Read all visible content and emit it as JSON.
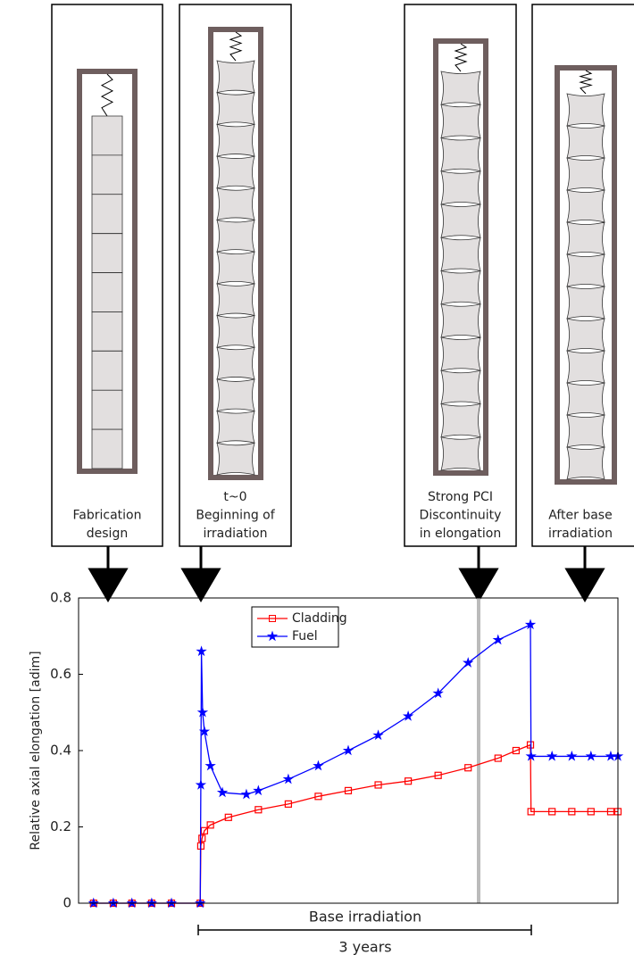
{
  "panels": [
    {
      "caption": [
        "Fabrication",
        "design"
      ]
    },
    {
      "caption": [
        "t~0",
        "Beginning of",
        "irradiation"
      ]
    },
    {
      "caption": [
        "Strong PCI",
        "Discontinuity",
        "in elongation"
      ]
    },
    {
      "caption": [
        "After base",
        "irradiation"
      ]
    }
  ],
  "chart_data": {
    "type": "line",
    "y_label": "Relative axial elongation [adim]",
    "annotation": "Base irradiation",
    "span_label": "3 years",
    "ylim": [
      0,
      0.8
    ],
    "yticks": [
      0,
      0.2,
      0.4,
      0.6,
      0.8
    ],
    "xlim": [
      0,
      9
    ],
    "legend": "upper center",
    "series": [
      {
        "name": "Cladding",
        "color": "#ff0000",
        "marker": "square",
        "x": [
          0.25,
          0.58,
          0.89,
          1.22,
          1.55,
          2.03,
          2.04,
          2.06,
          2.1,
          2.2,
          2.5,
          3.0,
          3.5,
          4.0,
          4.5,
          5.0,
          5.5,
          6.0,
          6.5,
          7.0,
          7.3,
          7.54,
          7.55,
          7.9,
          8.23,
          8.55,
          8.88,
          9.0
        ],
        "values": [
          0,
          0,
          0,
          0,
          0,
          0,
          0.15,
          0.17,
          0.19,
          0.205,
          0.225,
          0.245,
          0.26,
          0.28,
          0.295,
          0.31,
          0.32,
          0.335,
          0.355,
          0.38,
          0.4,
          0.415,
          0.24,
          0.24,
          0.24,
          0.24,
          0.24,
          0.24
        ]
      },
      {
        "name": "Fuel",
        "color": "#0000ff",
        "marker": "star",
        "x": [
          0.25,
          0.58,
          0.89,
          1.22,
          1.55,
          2.03,
          2.04,
          2.05,
          2.07,
          2.1,
          2.2,
          2.4,
          2.8,
          3.0,
          3.5,
          4.0,
          4.5,
          5.0,
          5.5,
          6.0,
          6.5,
          7.0,
          7.54,
          7.55,
          7.9,
          8.23,
          8.55,
          8.88,
          9.0
        ],
        "values": [
          0,
          0,
          0,
          0,
          0,
          0,
          0.31,
          0.66,
          0.5,
          0.45,
          0.36,
          0.29,
          0.285,
          0.295,
          0.325,
          0.36,
          0.4,
          0.44,
          0.49,
          0.55,
          0.63,
          0.69,
          0.73,
          0.385,
          0.385,
          0.385,
          0.385,
          0.385,
          0.385
        ]
      }
    ]
  }
}
